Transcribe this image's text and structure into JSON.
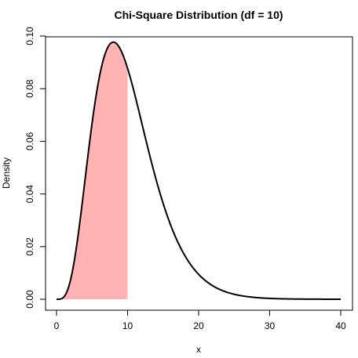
{
  "chart_data": {
    "type": "line",
    "title": "Chi-Square Distribution (df = 10)",
    "xlabel": "x",
    "ylabel": "Density",
    "df": 10,
    "xlim": [
      0,
      40
    ],
    "ylim": [
      0,
      0.1
    ],
    "x_ticks": [
      0,
      10,
      20,
      30,
      40
    ],
    "y_ticks": [
      0.0,
      0.02,
      0.04,
      0.06,
      0.08,
      0.1
    ],
    "x_tick_labels": [
      "0",
      "10",
      "20",
      "30",
      "40"
    ],
    "y_tick_labels": [
      "0.00",
      "0.02",
      "0.04",
      "0.06",
      "0.08",
      "0.10"
    ],
    "shaded_region": {
      "from": 0,
      "to": 10,
      "color": "#FFB3B3"
    },
    "series": [
      {
        "x": [
          0,
          1,
          2,
          3,
          4,
          5,
          6,
          7,
          8,
          9,
          10,
          11,
          12,
          13,
          14,
          15,
          16,
          17,
          18,
          19,
          20,
          22,
          24,
          26,
          28,
          30,
          32,
          34,
          36,
          38,
          40
        ],
        "values": [
          0,
          0.0008,
          0.0077,
          0.0235,
          0.0451,
          0.0668,
          0.084,
          0.094,
          0.0977,
          0.0956,
          0.0877,
          0.0779,
          0.067,
          0.0562,
          0.0463,
          0.0375,
          0.03,
          0.0237,
          0.0186,
          0.0145,
          0.0112,
          0.0065,
          0.0037,
          0.002,
          0.0011,
          0.0006,
          0.0003,
          0.0002,
          0.0001,
          0.0,
          0.0
        ]
      }
    ],
    "line_color": "#000000",
    "grid": false,
    "box": true
  }
}
